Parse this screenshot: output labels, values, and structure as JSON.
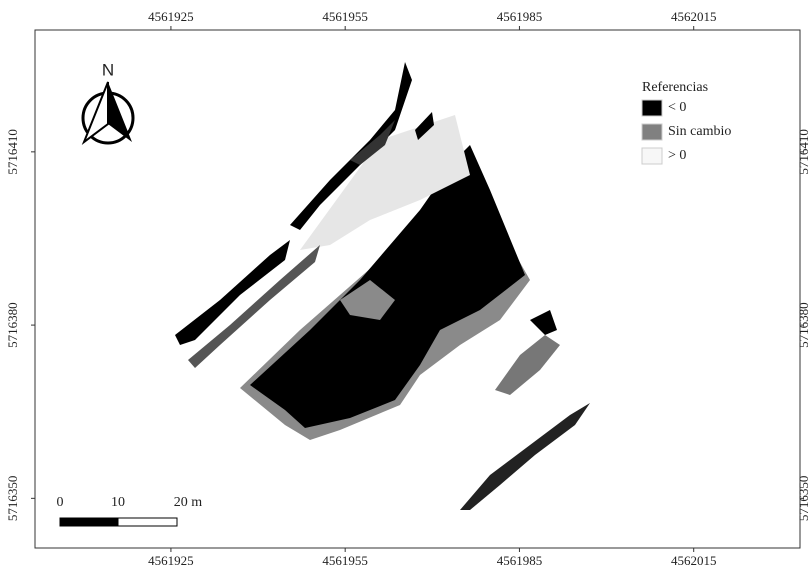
{
  "map": {
    "xlim": [
      4561901.6,
      4562033.3
    ],
    "ylim": [
      5716341.4,
      5716431.1
    ],
    "xticks": [
      4561925,
      4561955,
      4561985,
      4562015
    ],
    "yticks": [
      5716410,
      5716380,
      5716350
    ],
    "north": "N",
    "legend": {
      "title": "Referencias",
      "items": [
        {
          "label": "< 0",
          "color": "#000000"
        },
        {
          "label": "Sin cambio",
          "color": "#808080"
        },
        {
          "label": "> 0",
          "color": "#f7f7f7"
        }
      ]
    },
    "scale_bar": [
      "0",
      "10",
      "20 m"
    ]
  }
}
